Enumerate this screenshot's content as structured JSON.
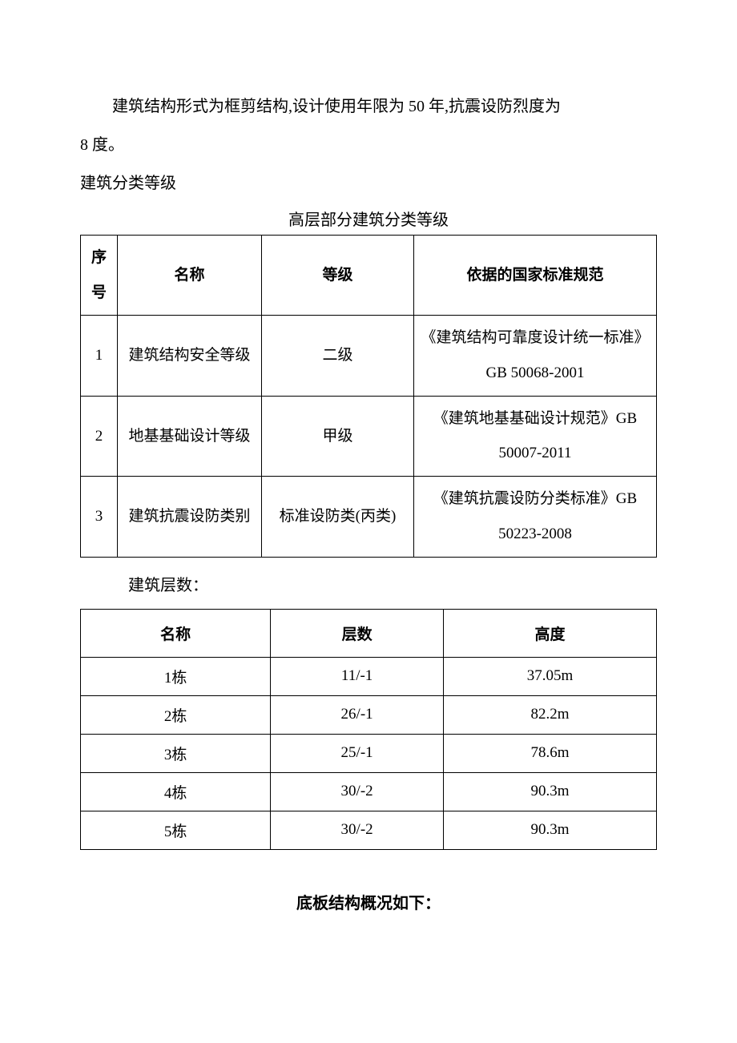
{
  "intro": {
    "para1": "建筑结构形式为框剪结构,设计使用年限为 50 年,抗震设防烈度为",
    "para2": "8 度。",
    "section_label": "建筑分类等级",
    "table1_title": "高层部分建筑分类等级"
  },
  "table1": {
    "columns": [
      "序号",
      "名称",
      "等级",
      "依据的国家标准规范"
    ],
    "rows": [
      [
        "1",
        "建筑结构安全等级",
        "二级",
        "《建筑结构可靠度设计统一标准》GB 50068-2001"
      ],
      [
        "2",
        "地基基础设计等级",
        "甲级",
        "《建筑地基基础设计规范》GB 50007-2011"
      ],
      [
        "3",
        "建筑抗震设防类别",
        "标准设防类(丙类)",
        "《建筑抗震设防分类标准》GB 50223-2008"
      ]
    ],
    "col_widths": [
      "46px",
      "180px",
      "190px",
      "auto"
    ]
  },
  "floors_label": "建筑层数：",
  "table2": {
    "columns": [
      "名称",
      "层数",
      "高度"
    ],
    "rows": [
      [
        "1栋",
        "11/-1",
        "37.05m"
      ],
      [
        "2栋",
        "26/-1",
        "82.2m"
      ],
      [
        "3栋",
        "25/-1",
        "78.6m"
      ],
      [
        "4栋",
        "30/-2",
        "90.3m"
      ],
      [
        "5栋",
        "30/-2",
        "90.3m"
      ]
    ]
  },
  "bottom_title": "底板结构概况如下：",
  "style": {
    "background_color": "#ffffff",
    "text_color": "#000000",
    "border_color": "#000000",
    "body_font_size": 20,
    "table_font_size": 19,
    "line_height": 2.3
  }
}
